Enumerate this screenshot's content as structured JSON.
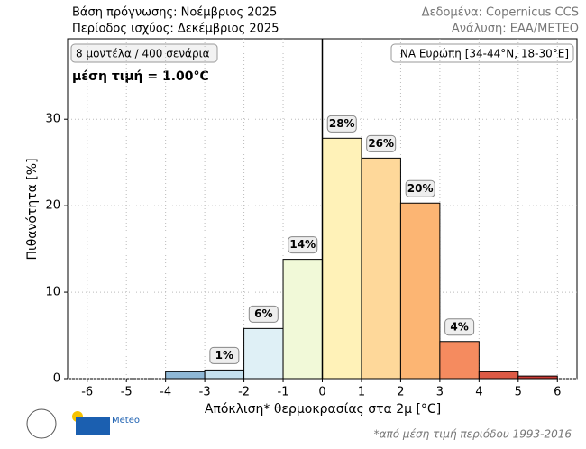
{
  "chart_data": {
    "type": "histogram",
    "header_left": [
      "Βάση πρόγνωσης: Νοέμβριος 2025",
      "Περίοδος ισχύος: Δεκέμβριος 2025"
    ],
    "header_right": [
      "Δεδομένα: Copernicus CCS",
      "Ανάλυση: ΕΑΑ/METEO"
    ],
    "info_box": "8 μοντέλα / 400 σενάρια",
    "mean_text": "μέση τιμή = 1.00°C",
    "region_box": "ΝΑ Ευρώπη [34-44°N, 18-30°E]",
    "x_label": "Απόκλιση* θερμοκρασίας στα 2μ [°C]",
    "y_label": "Πιθανότητα [%]",
    "footnote": "*από μέση τιμή περιόδου 1993-2016",
    "logo_text": "Meteo",
    "bins": [
      -6,
      -5,
      -4,
      -3,
      -2,
      -1,
      0,
      1,
      2,
      3,
      4,
      5,
      6
    ],
    "values": [
      0,
      0,
      0.8,
      1.0,
      5.8,
      13.8,
      27.8,
      25.5,
      20.3,
      4.3,
      0.8,
      0.3
    ],
    "value_labels": [
      null,
      null,
      null,
      "1%",
      "6%",
      "14%",
      "28%",
      "26%",
      "20%",
      "4%",
      null,
      null
    ],
    "colors": [
      "#4f8fc0",
      "#8fb8d6",
      "#8fb8d6",
      "#c5e0ee",
      "#dff0f6",
      "#f1f9d8",
      "#fff2b8",
      "#fed89a",
      "#fcb573",
      "#f58b5f",
      "#de5a45",
      "#c93b35"
    ],
    "vline": 0,
    "xlim": [
      -6.5,
      6.5
    ],
    "xticks": [
      -6,
      -5,
      -4,
      -3,
      -2,
      -1,
      0,
      1,
      2,
      3,
      4,
      5,
      6
    ],
    "ylim": [
      0,
      39.3
    ],
    "yticks": [
      0,
      10,
      20,
      30
    ],
    "grid": true
  }
}
